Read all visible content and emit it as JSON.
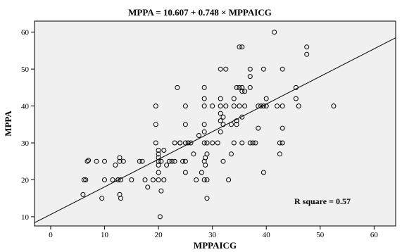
{
  "chart_data": {
    "type": "scatter",
    "title": "MPPA = 10.607 + 0.748 × MPPAICG",
    "xlabel": "MPPAICG",
    "ylabel": "MPPA",
    "xlim": [
      -3,
      64
    ],
    "ylim": [
      7.5,
      63
    ],
    "xticks": [
      0,
      10,
      20,
      30,
      40,
      50,
      60
    ],
    "yticks": [
      10,
      20,
      30,
      40,
      50,
      60
    ],
    "grid": false,
    "legend": "none",
    "annotation": "R square = 0.57",
    "fit_line": {
      "intercept": 10.607,
      "slope": 0.748
    },
    "marker": "open-circle",
    "plot_background": "#f0f0f0",
    "points": [
      [
        6,
        16
      ],
      [
        6.2,
        20
      ],
      [
        6.5,
        20
      ],
      [
        6.8,
        25
      ],
      [
        7,
        25.3
      ],
      [
        8.5,
        25
      ],
      [
        9.5,
        15
      ],
      [
        10,
        20
      ],
      [
        10,
        25
      ],
      [
        11.5,
        20
      ],
      [
        12,
        24
      ],
      [
        12.5,
        20
      ],
      [
        12.5,
        20
      ],
      [
        12.8,
        25
      ],
      [
        12.8,
        26
      ],
      [
        13,
        20
      ],
      [
        12.8,
        16
      ],
      [
        13,
        15
      ],
      [
        13.5,
        25
      ],
      [
        15,
        20
      ],
      [
        16.5,
        25
      ],
      [
        17,
        25
      ],
      [
        17.5,
        20
      ],
      [
        18,
        18
      ],
      [
        19,
        20
      ],
      [
        19.5,
        40
      ],
      [
        19.5,
        35
      ],
      [
        19.5,
        30
      ],
      [
        20,
        20
      ],
      [
        20,
        22
      ],
      [
        20,
        24
      ],
      [
        20,
        25
      ],
      [
        20,
        26
      ],
      [
        20,
        27
      ],
      [
        20,
        28
      ],
      [
        20.5,
        17
      ],
      [
        20.3,
        10
      ],
      [
        20.5,
        25
      ],
      [
        21,
        28
      ],
      [
        21,
        20
      ],
      [
        21.5,
        24
      ],
      [
        22,
        25
      ],
      [
        22.5,
        25
      ],
      [
        23,
        25
      ],
      [
        23,
        30
      ],
      [
        23.5,
        45
      ],
      [
        24,
        30
      ],
      [
        24,
        30
      ],
      [
        24.5,
        25
      ],
      [
        25,
        30
      ],
      [
        25,
        22
      ],
      [
        25,
        25
      ],
      [
        25.5,
        30
      ],
      [
        25,
        40
      ],
      [
        25,
        35
      ],
      [
        26,
        30
      ],
      [
        26.5,
        27
      ],
      [
        27,
        20
      ],
      [
        27.5,
        32
      ],
      [
        28,
        22
      ],
      [
        28.5,
        20
      ],
      [
        28.5,
        30
      ],
      [
        28.5,
        33
      ],
      [
        28.5,
        35
      ],
      [
        28.5,
        40
      ],
      [
        28.5,
        42
      ],
      [
        28.5,
        45
      ],
      [
        28.5,
        25
      ],
      [
        28.7,
        26
      ],
      [
        28.7,
        24
      ],
      [
        29,
        15
      ],
      [
        29,
        20
      ],
      [
        29,
        27
      ],
      [
        29,
        30
      ],
      [
        30,
        40
      ],
      [
        30,
        30
      ],
      [
        31,
        30
      ],
      [
        31.5,
        33
      ],
      [
        31.5,
        36
      ],
      [
        31.5,
        38
      ],
      [
        31.5,
        40
      ],
      [
        31.5,
        42
      ],
      [
        31.5,
        50
      ],
      [
        32,
        25
      ],
      [
        32,
        35
      ],
      [
        32,
        37
      ],
      [
        32.5,
        50
      ],
      [
        32.5,
        40
      ],
      [
        33,
        20
      ],
      [
        33.5,
        27
      ],
      [
        33.5,
        35
      ],
      [
        34,
        30
      ],
      [
        34,
        40
      ],
      [
        34,
        42
      ],
      [
        34.5,
        35
      ],
      [
        34.5,
        36
      ],
      [
        34.5,
        45
      ],
      [
        35,
        56
      ],
      [
        35,
        40
      ],
      [
        35,
        45
      ],
      [
        35.5,
        45
      ],
      [
        35.5,
        30
      ],
      [
        35.5,
        37
      ],
      [
        35.5,
        44
      ],
      [
        35.5,
        56
      ],
      [
        36,
        44
      ],
      [
        36,
        40
      ],
      [
        37,
        30
      ],
      [
        37,
        45
      ],
      [
        37,
        48
      ],
      [
        37,
        50
      ],
      [
        37.5,
        30
      ],
      [
        38,
        30
      ],
      [
        38.5,
        34
      ],
      [
        38.5,
        40
      ],
      [
        39,
        40
      ],
      [
        39.5,
        22
      ],
      [
        39.5,
        50
      ],
      [
        39.5,
        40
      ],
      [
        40,
        40
      ],
      [
        40,
        42
      ],
      [
        41.5,
        60
      ],
      [
        42,
        40
      ],
      [
        42.5,
        30
      ],
      [
        42.5,
        27
      ],
      [
        43,
        30
      ],
      [
        43,
        34
      ],
      [
        43,
        40
      ],
      [
        43,
        50
      ],
      [
        45.5,
        42
      ],
      [
        45.5,
        45
      ],
      [
        46,
        40
      ],
      [
        47.5,
        54
      ],
      [
        47.5,
        56
      ],
      [
        52.5,
        40
      ]
    ]
  }
}
